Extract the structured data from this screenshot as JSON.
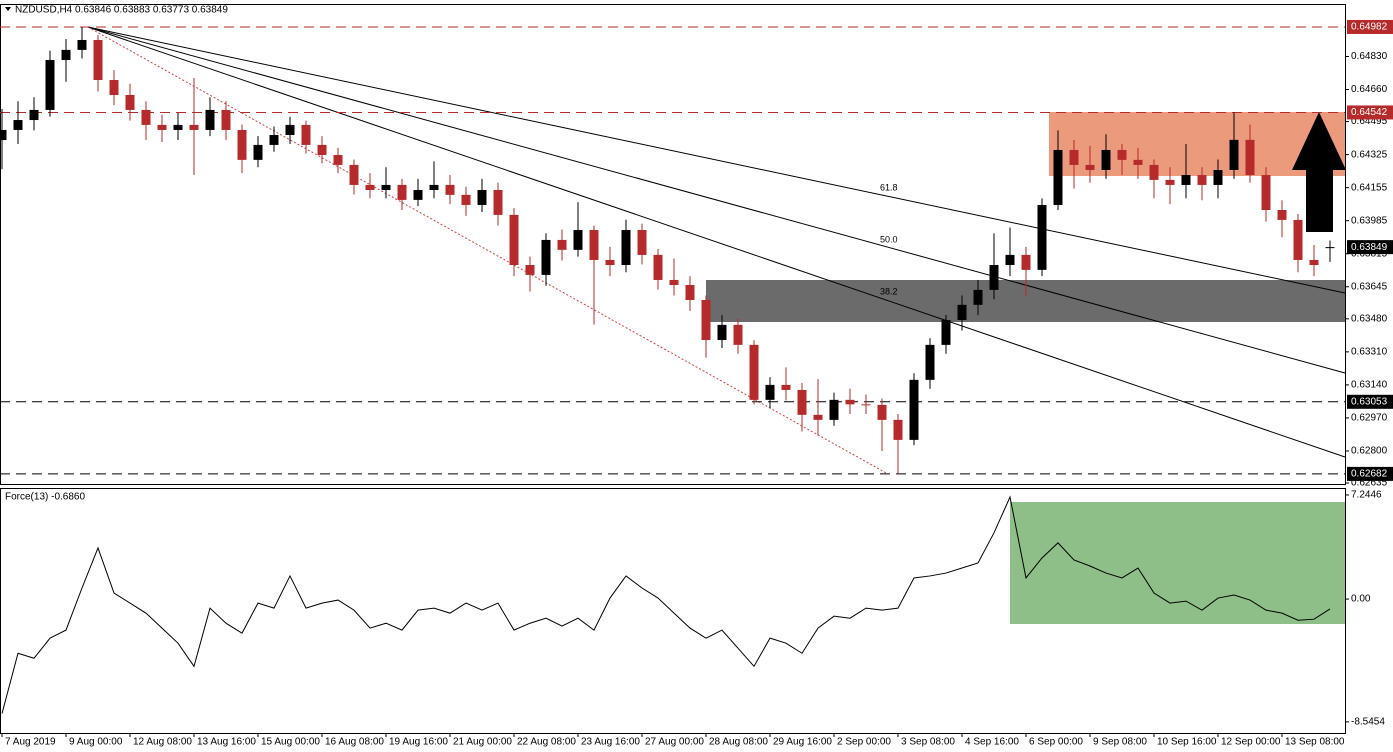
{
  "chart_data": [
    {
      "type": "candlestick",
      "title": "NZDUSD,H4  0.63846 0.63883 0.63773 0.63849",
      "categories": [
        "7 Aug 2019",
        null,
        null,
        null,
        "9 Aug 00:00",
        null,
        null,
        null,
        "12 Aug 08:00",
        null,
        null,
        null,
        "13 Aug 16:00",
        null,
        null,
        null,
        "15 Aug 00:00",
        null,
        null,
        null,
        "16 Aug 08:00",
        null,
        null,
        null,
        "19 Aug 16:00",
        null,
        null,
        null,
        "21 Aug 00:00",
        null,
        null,
        null,
        "22 Aug 08:00",
        null,
        null,
        null,
        "23 Aug 16:00",
        null,
        null,
        null,
        "27 Aug 00:00",
        null,
        null,
        null,
        "28 Aug 08:00",
        null,
        null,
        null,
        "29 Aug 16:00",
        null,
        null,
        null,
        "2 Sep 00:00",
        null,
        null,
        null,
        "3 Sep 08:00",
        null,
        null,
        null,
        "4 Sep 16:00",
        null,
        null,
        null,
        "6 Sep 00:00",
        null,
        null,
        null,
        "9 Sep 08:00",
        null,
        null,
        null,
        "10 Sep 16:00",
        null,
        null,
        null,
        "12 Sep 00:00",
        null,
        null,
        null,
        "13 Sep 08:00",
        null,
        null,
        null
      ],
      "ohlc": [
        [
          0.644,
          0.6456,
          0.6425,
          0.64452
        ],
        [
          0.64452,
          0.646,
          0.6438,
          0.64503
        ],
        [
          0.64503,
          0.6462,
          0.6445,
          0.64555
        ],
        [
          0.64555,
          0.6486,
          0.6452,
          0.64812
        ],
        [
          0.64812,
          0.6492,
          0.647,
          0.64864
        ],
        [
          0.64864,
          0.64982,
          0.6482,
          0.64915
        ],
        [
          0.64915,
          0.6494,
          0.6465,
          0.64709
        ],
        [
          0.64709,
          0.6476,
          0.6458,
          0.64632
        ],
        [
          0.64632,
          0.6469,
          0.645,
          0.64555
        ],
        [
          0.64555,
          0.646,
          0.644,
          0.64478
        ],
        [
          0.64478,
          0.6453,
          0.6439,
          0.64452
        ],
        [
          0.64452,
          0.6454,
          0.644,
          0.64478
        ],
        [
          0.64478,
          0.6472,
          0.6422,
          0.64452
        ],
        [
          0.64452,
          0.6462,
          0.6442,
          0.64555
        ],
        [
          0.64555,
          0.646,
          0.644,
          0.64452
        ],
        [
          0.64452,
          0.6448,
          0.6423,
          0.64298
        ],
        [
          0.64298,
          0.6442,
          0.6426,
          0.64375
        ],
        [
          0.64375,
          0.6447,
          0.6434,
          0.64426
        ],
        [
          0.64426,
          0.6452,
          0.6438,
          0.64478
        ],
        [
          0.64478,
          0.645,
          0.6433,
          0.64375
        ],
        [
          0.64375,
          0.6442,
          0.6428,
          0.64323
        ],
        [
          0.64323,
          0.6436,
          0.6423,
          0.64272
        ],
        [
          0.64272,
          0.643,
          0.6412,
          0.64169
        ],
        [
          0.64169,
          0.6423,
          0.641,
          0.64143
        ],
        [
          0.64143,
          0.6426,
          0.641,
          0.64169
        ],
        [
          0.64169,
          0.642,
          0.6404,
          0.64092
        ],
        [
          0.64092,
          0.642,
          0.6406,
          0.64143
        ],
        [
          0.64143,
          0.6429,
          0.641,
          0.64169
        ],
        [
          0.64169,
          0.6422,
          0.6407,
          0.64118
        ],
        [
          0.64118,
          0.6416,
          0.6401,
          0.64066
        ],
        [
          0.64066,
          0.642,
          0.6403,
          0.64143
        ],
        [
          0.64143,
          0.6418,
          0.6396,
          0.64015
        ],
        [
          0.64015,
          0.6405,
          0.637,
          0.63757
        ],
        [
          0.63757,
          0.638,
          0.6362,
          0.63706
        ],
        [
          0.63706,
          0.6392,
          0.6365,
          0.63886
        ],
        [
          0.63886,
          0.6394,
          0.6378,
          0.63835
        ],
        [
          0.63835,
          0.6408,
          0.638,
          0.63937
        ],
        [
          0.63937,
          0.6396,
          0.6345,
          0.63783
        ],
        [
          0.63783,
          0.6385,
          0.637,
          0.63757
        ],
        [
          0.63757,
          0.6399,
          0.6372,
          0.63937
        ],
        [
          0.63937,
          0.6397,
          0.6376,
          0.63809
        ],
        [
          0.63809,
          0.6384,
          0.6363,
          0.6368
        ],
        [
          0.6368,
          0.6379,
          0.636,
          0.63654
        ],
        [
          0.63654,
          0.637,
          0.6352,
          0.63577
        ],
        [
          0.63577,
          0.636,
          0.6328,
          0.63371
        ],
        [
          0.63371,
          0.635,
          0.6333,
          0.63449
        ],
        [
          0.63449,
          0.6348,
          0.633,
          0.63346
        ],
        [
          0.63346,
          0.6337,
          0.6304,
          0.63063
        ],
        [
          0.63063,
          0.6318,
          0.6302,
          0.6314
        ],
        [
          0.6314,
          0.6323,
          0.6306,
          0.63114
        ],
        [
          0.63114,
          0.6315,
          0.629,
          0.62986
        ],
        [
          0.62986,
          0.6317,
          0.6288,
          0.6296
        ],
        [
          0.6296,
          0.631,
          0.6293,
          0.63063
        ],
        [
          0.63063,
          0.6312,
          0.6299,
          0.6304
        ],
        [
          0.6304,
          0.6309,
          0.6299,
          0.63037
        ],
        [
          0.63037,
          0.6307,
          0.628,
          0.6296
        ],
        [
          0.6296,
          0.6299,
          0.62682,
          0.62857
        ],
        [
          0.62857,
          0.632,
          0.6283,
          0.63166
        ],
        [
          0.63166,
          0.6338,
          0.6312,
          0.63346
        ],
        [
          0.63346,
          0.635,
          0.633,
          0.63474
        ],
        [
          0.63474,
          0.636,
          0.6342,
          0.63552
        ],
        [
          0.63552,
          0.6368,
          0.635,
          0.63629
        ],
        [
          0.63629,
          0.6392,
          0.6358,
          0.63757
        ],
        [
          0.63757,
          0.6395,
          0.637,
          0.63809
        ],
        [
          0.63809,
          0.6385,
          0.636,
          0.63732
        ],
        [
          0.63732,
          0.641,
          0.637,
          0.64066
        ],
        [
          0.64066,
          0.6445,
          0.6404,
          0.64349
        ],
        [
          0.64349,
          0.644,
          0.6415,
          0.64272
        ],
        [
          0.64272,
          0.6437,
          0.6418,
          0.64246
        ],
        [
          0.64246,
          0.6443,
          0.642,
          0.64349
        ],
        [
          0.64349,
          0.6438,
          0.6422,
          0.64298
        ],
        [
          0.64298,
          0.6436,
          0.642,
          0.64272
        ],
        [
          0.64272,
          0.643,
          0.641,
          0.64195
        ],
        [
          0.64195,
          0.6426,
          0.6407,
          0.64169
        ],
        [
          0.64169,
          0.6438,
          0.641,
          0.6422
        ],
        [
          0.6422,
          0.6426,
          0.6409,
          0.64169
        ],
        [
          0.64169,
          0.643,
          0.641,
          0.64246
        ],
        [
          0.64246,
          0.64542,
          0.642,
          0.64401
        ],
        [
          0.64401,
          0.6448,
          0.6418,
          0.6422
        ],
        [
          0.6422,
          0.6426,
          0.6398,
          0.6404
        ],
        [
          0.6404,
          0.6409,
          0.639,
          0.63989
        ],
        [
          0.63989,
          0.6402,
          0.6372,
          0.63783
        ],
        [
          0.63783,
          0.6386,
          0.637,
          0.63757
        ],
        [
          0.63846,
          0.63883,
          0.63773,
          0.63849
        ]
      ],
      "up_color": "#000000",
      "down_color": "#b52a2a",
      "ylim": [
        0.6263,
        0.65095
      ],
      "yticks": [
        {
          "value": 0.6483,
          "label": "0.64830"
        },
        {
          "value": 0.6466,
          "label": "0.64660"
        },
        0.64495,
        0.64325,
        0.64155,
        0.63985,
        0.63815,
        0.63645,
        {
          "value": 0.6348,
          "label": "0.63480"
        },
        {
          "value": 0.6331,
          "label": "0.63310"
        },
        {
          "value": 0.6314,
          "label": "0.63140"
        },
        {
          "value": 0.6297,
          "label": "0.62970"
        },
        {
          "value": 0.628,
          "label": "0.62800"
        },
        0.62635
      ],
      "levels": [
        0.64982,
        0.64542,
        0.63053,
        0.62682
      ],
      "level_colors": [
        "#b52a2a",
        "#b52a2a",
        "#000000",
        "#000000"
      ],
      "annotations": [
        "61.8",
        "50.0",
        "38.2"
      ]
    },
    {
      "type": "line",
      "title": "Force(13) -0.6860",
      "values": [
        -7.96,
        -3.77,
        -4.12,
        -2.72,
        -2.16,
        0.77,
        3.56,
        0.42,
        -0.28,
        -0.98,
        -2.02,
        -3.07,
        -4.68,
        -0.63,
        -1.68,
        -2.37,
        -0.28,
        -0.63,
        1.61,
        -0.63,
        -0.28,
        -0.07,
        -0.77,
        -2.02,
        -1.68,
        -2.16,
        -0.77,
        -0.63,
        -0.98,
        -0.28,
        -0.77,
        -0.28,
        -2.16,
        -1.68,
        -1.33,
        -1.88,
        -1.33,
        -2.16,
        0.07,
        1.61,
        0.77,
        0.07,
        -0.98,
        -2.02,
        -2.72,
        -2.16,
        -3.42,
        -4.68,
        -2.72,
        -3.07,
        -3.77,
        -2.02,
        -1.19,
        -1.33,
        -0.63,
        -0.77,
        -0.63,
        1.47,
        1.61,
        1.81,
        2.16,
        2.51,
        4.61,
        7.1,
        1.47,
        2.86,
        3.91,
        2.72,
        2.3,
        1.81,
        1.47,
        2.16,
        0.42,
        -0.28,
        -0.14,
        -0.77,
        0.07,
        0.28,
        -0.07,
        -0.77,
        -0.98,
        -1.47,
        -1.4,
        -0.686
      ],
      "color": "#000000",
      "ylim": [
        -9.32,
        7.66
      ],
      "yticks": [
        7.2446,
        {
          "value": 0,
          "label": "0.00"
        },
        -8.5454
      ]
    }
  ]
}
